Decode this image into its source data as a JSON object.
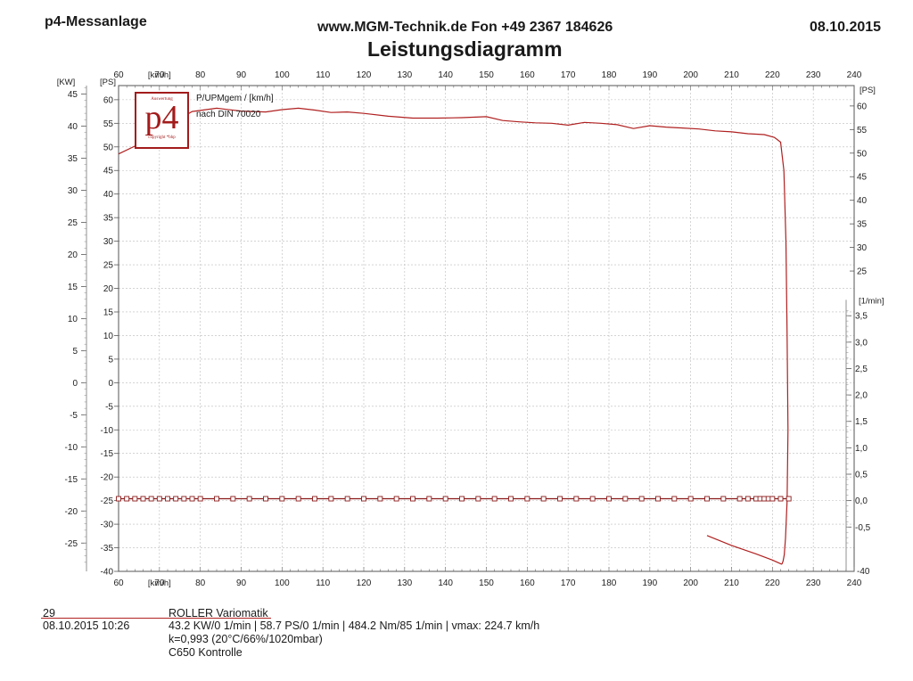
{
  "header": {
    "left": "p4-Messanlage",
    "center": "www.MGM-Technik.de Fon +49 2367 184626",
    "right": "08.10.2015",
    "title": "Leistungsdiagramm"
  },
  "logo": {
    "text": "p4",
    "top_text": "Auswertung",
    "bottom_text": "copyright *bhp"
  },
  "legend": {
    "line1": "P/UPMgem / [km/h]",
    "line2": "nach DIN 70020"
  },
  "footer": {
    "number": "29",
    "datetime": "08.10.2015  10:26",
    "line1": "ROLLER Variomatik",
    "line2": "43.2 KW/0 1/min  |  58.7 PS/0 1/min  |  484.2 Nm/85 1/min |  vmax: 224.7 km/h",
    "line3": "k=0,993 (20°C/66%/1020mbar)",
    "line4": "C650 Kontrolle"
  },
  "chart_data": {
    "type": "line",
    "title": "Leistungsdiagramm",
    "x_unit": "[km/h]",
    "xlim": [
      60,
      240
    ],
    "x_ticks": [
      60,
      70,
      80,
      90,
      100,
      110,
      120,
      130,
      140,
      150,
      160,
      170,
      180,
      190,
      200,
      210,
      220,
      230,
      240
    ],
    "y_left_kw": {
      "unit": "[KW]",
      "ticks": [
        45,
        40,
        35,
        30,
        25,
        20,
        15,
        10,
        5,
        0,
        -5,
        -10,
        -15,
        -20,
        -25
      ]
    },
    "y_left_ps": {
      "unit": "[PS]",
      "ylim": [
        -40,
        63
      ],
      "ticks": [
        60,
        55,
        50,
        45,
        40,
        35,
        30,
        25,
        20,
        15,
        10,
        5,
        0,
        -5,
        -10,
        -15,
        -20,
        -25,
        -30,
        -35,
        -40
      ]
    },
    "y_right_ps": {
      "unit": "[PS]",
      "ticks": [
        60,
        55,
        50,
        45,
        40,
        35,
        30,
        25
      ]
    },
    "y_right_rpm": {
      "unit": "[1/min]",
      "ticks": [
        "3,5",
        "3,0",
        "2,5",
        "2,0",
        "1,5",
        "1,0",
        "0,5",
        "0,0",
        "-0,5"
      ],
      "bottom_label": "-40"
    },
    "grid": true,
    "series": [
      {
        "color": "#b02020",
        "x": [
          60,
          66,
          72,
          78,
          84,
          90,
          96,
          100,
          104,
          108,
          112,
          116,
          120,
          126,
          132,
          138,
          144,
          150,
          154,
          158,
          162,
          166,
          170,
          174,
          178,
          182,
          186,
          190,
          194,
          198,
          202,
          206,
          210,
          214,
          218,
          220.5,
          222,
          222.8,
          223.3,
          223.6,
          223.8,
          223.6,
          223.2,
          222.9,
          222.6,
          222.3
        ],
        "y": [
          48.5,
          51,
          54.5,
          57.5,
          58.2,
          57.6,
          57.4,
          57.9,
          58.2,
          57.8,
          57.3,
          57.4,
          57.1,
          56.5,
          56.1,
          56.1,
          56.2,
          56.4,
          55.6,
          55.3,
          55.1,
          55.0,
          54.6,
          55.2,
          55.0,
          54.7,
          53.9,
          54.5,
          54.2,
          54.0,
          53.8,
          53.4,
          53.2,
          52.8,
          52.6,
          52.0,
          51.0,
          45.0,
          30.0,
          10.0,
          -10.0,
          -25.0,
          -33.0,
          -36.5,
          -37.8,
          -38.5
        ]
      },
      {
        "color": "#b02020",
        "x": [
          204,
          210,
          216,
          220,
          222.3
        ],
        "y": [
          -32.4,
          -34.5,
          -36.3,
          -37.6,
          -38.5
        ]
      },
      {
        "color": "#8b1a1a",
        "marker": "square",
        "x": [
          60,
          62,
          64,
          66,
          68,
          70,
          72,
          74,
          76,
          78,
          80,
          84,
          88,
          92,
          96,
          100,
          104,
          108,
          112,
          116,
          120,
          124,
          128,
          132,
          136,
          140,
          144,
          148,
          152,
          156,
          160,
          164,
          168,
          172,
          176,
          180,
          184,
          188,
          192,
          196,
          200,
          204,
          208,
          212,
          214,
          216,
          217,
          218,
          219,
          220,
          222,
          224
        ],
        "y": [
          -24.6,
          -24.6,
          -24.6,
          -24.6,
          -24.6,
          -24.6,
          -24.6,
          -24.6,
          -24.6,
          -24.6,
          -24.6,
          -24.6,
          -24.6,
          -24.6,
          -24.6,
          -24.6,
          -24.6,
          -24.6,
          -24.6,
          -24.6,
          -24.6,
          -24.6,
          -24.6,
          -24.6,
          -24.6,
          -24.6,
          -24.6,
          -24.6,
          -24.6,
          -24.6,
          -24.6,
          -24.6,
          -24.6,
          -24.6,
          -24.6,
          -24.6,
          -24.6,
          -24.6,
          -24.6,
          -24.6,
          -24.6,
          -24.6,
          -24.6,
          -24.6,
          -24.6,
          -24.6,
          -24.6,
          -24.6,
          -24.6,
          -24.6,
          -24.6,
          -24.6
        ]
      }
    ]
  }
}
